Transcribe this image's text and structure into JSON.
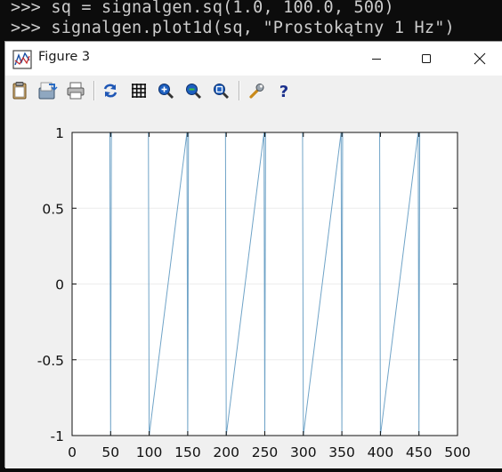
{
  "console": {
    "line1": ">>> sq = signalgen.sq(1.0, 100.0, 500)",
    "line2": ">>> signalgen.plot1d(sq, \"Prostokątny 1 Hz\")"
  },
  "window": {
    "title": "Figure 3",
    "icon": "figure-app-icon"
  },
  "toolbar": {
    "buttons": [
      {
        "icon": "clipboard-copy-icon"
      },
      {
        "icon": "save-icon"
      },
      {
        "icon": "print-icon"
      },
      {
        "icon": "refresh-icon"
      },
      {
        "icon": "grid-icon"
      },
      {
        "icon": "zoom-in-icon"
      },
      {
        "icon": "zoom-out-icon"
      },
      {
        "icon": "zoom-fit-icon"
      },
      {
        "icon": "settings-wrench-icon"
      },
      {
        "icon": "help-icon"
      }
    ]
  },
  "chart_data": {
    "type": "line",
    "title": "",
    "xlabel": "",
    "ylabel": "",
    "xlim": [
      0,
      500
    ],
    "ylim": [
      -1,
      1
    ],
    "x_ticks": [
      0,
      50,
      100,
      150,
      200,
      250,
      300,
      350,
      400,
      450,
      500
    ],
    "y_ticks": [
      -1,
      -0.5,
      0,
      0.5,
      1
    ],
    "y_tick_labels": [
      "-1",
      "-0.5",
      "0",
      "0.5",
      "1"
    ],
    "series_color": "#6fa3c7",
    "grid": true,
    "series": [
      {
        "x": [
          0,
          49,
          50,
          51,
          99,
          100,
          149,
          150,
          151,
          199,
          200,
          249,
          250,
          251,
          299,
          300,
          349,
          350,
          351,
          399,
          400,
          449,
          450,
          451,
          499
        ],
        "values": [
          1,
          1,
          -1,
          1,
          1,
          -1,
          1,
          -1,
          1,
          1,
          -1,
          1,
          -1,
          1,
          1,
          -1,
          1,
          -1,
          1,
          1,
          -1,
          1,
          -1,
          1,
          1
        ]
      }
    ]
  }
}
